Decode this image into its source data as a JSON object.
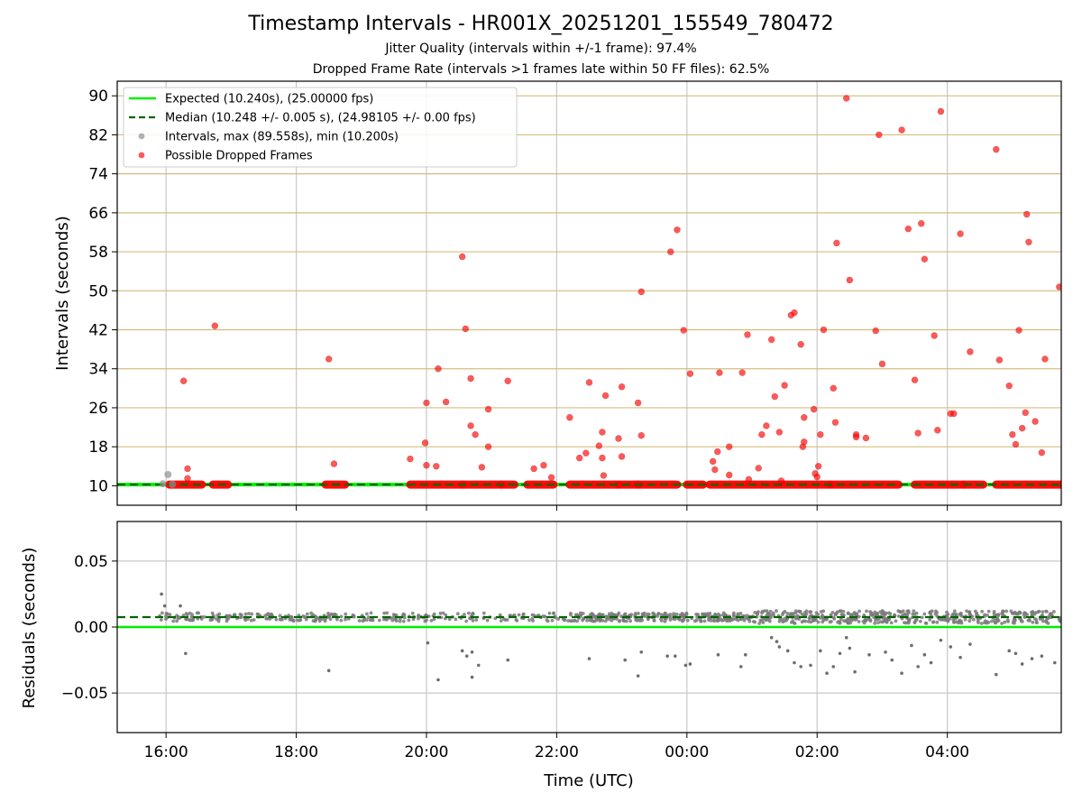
{
  "chart_data": [
    {
      "type": "scatter",
      "title": "Timestamp Intervals - HR001X_20251201_155549_780472",
      "subtitle_1": "Jitter Quality (intervals within +/-1 frame): 97.4%",
      "subtitle_2": "Dropped Frame Rate (intervals >1 frames late within 50 FF files): 62.5%",
      "xlabel": "",
      "ylabel": "Intervals (seconds)",
      "x_unit": "hours since 00:00 UTC (day 1); values above 24 wrap to next day",
      "xlim": [
        15.25,
        29.75
      ],
      "ylim": [
        6,
        93
      ],
      "yticks": [
        10,
        18,
        26,
        34,
        42,
        50,
        58,
        66,
        74,
        82,
        90
      ],
      "ytick_labels": [
        "10",
        "18",
        "26",
        "34",
        "42",
        "50",
        "58",
        "66",
        "74",
        "82",
        "90"
      ],
      "xticks": [
        16,
        18,
        20,
        22,
        24,
        26,
        28
      ],
      "grid": {
        "horizontal": true,
        "vertical": true
      },
      "legend": {
        "position": "top-left",
        "entries": [
          "Expected (10.240s), (25.00000 fps)",
          "Median (10.248 +/- 0.005 s), (24.98105 +/- 0.00 fps)",
          "Intervals, max (89.558s), min (10.200s)",
          "Possible Dropped Frames"
        ]
      },
      "colors": {
        "expected": "#00ee00",
        "median": "#006400",
        "intervals": "#909090",
        "dropped": "#ff0000",
        "gridline": "#d4bd7c",
        "vgrid": "#c8c8c8"
      },
      "expected_value": 10.24,
      "median_value": 10.248,
      "interval_points": [
        [
          15.95,
          10.4
        ],
        [
          16.03,
          12.3
        ],
        [
          16.1,
          10.3
        ]
      ],
      "dropped_segments": [
        [
          16.05,
          16.55
        ],
        [
          16.72,
          16.95
        ],
        [
          18.45,
          18.75
        ],
        [
          19.75,
          20.55
        ],
        [
          20.55,
          21.15
        ],
        [
          21.15,
          21.35
        ],
        [
          21.55,
          21.95
        ],
        [
          22.2,
          22.95
        ],
        [
          22.95,
          23.25
        ],
        [
          23.25,
          23.85
        ],
        [
          24.0,
          24.25
        ],
        [
          24.35,
          26.2
        ],
        [
          26.2,
          27.25
        ],
        [
          27.5,
          28.25
        ],
        [
          28.25,
          28.55
        ],
        [
          28.75,
          29.75
        ]
      ],
      "dropped_points": [
        [
          16.27,
          31.5
        ],
        [
          16.33,
          13.5
        ],
        [
          16.33,
          11.5
        ],
        [
          16.75,
          42.8
        ],
        [
          18.5,
          36.0
        ],
        [
          18.58,
          14.5
        ],
        [
          19.75,
          15.5
        ],
        [
          19.98,
          18.8
        ],
        [
          20.0,
          27.0
        ],
        [
          20.0,
          14.2
        ],
        [
          20.15,
          14.0
        ],
        [
          20.18,
          34.0
        ],
        [
          20.3,
          27.2
        ],
        [
          20.55,
          57.0
        ],
        [
          20.6,
          42.2
        ],
        [
          20.68,
          32.0
        ],
        [
          20.68,
          22.3
        ],
        [
          20.75,
          20.5
        ],
        [
          20.85,
          13.8
        ],
        [
          20.95,
          25.7
        ],
        [
          20.95,
          18.0
        ],
        [
          21.25,
          31.5
        ],
        [
          21.65,
          13.5
        ],
        [
          21.8,
          14.2
        ],
        [
          21.92,
          11.7
        ],
        [
          22.2,
          24.0
        ],
        [
          22.35,
          15.7
        ],
        [
          22.45,
          16.7
        ],
        [
          22.5,
          31.2
        ],
        [
          22.65,
          18.2
        ],
        [
          22.7,
          21.0
        ],
        [
          22.7,
          15.7
        ],
        [
          22.72,
          12.1
        ],
        [
          22.75,
          28.5
        ],
        [
          22.95,
          19.7
        ],
        [
          23.0,
          30.3
        ],
        [
          23.0,
          16.0
        ],
        [
          23.25,
          27.0
        ],
        [
          23.3,
          20.3
        ],
        [
          23.3,
          49.8
        ],
        [
          23.75,
          58.0
        ],
        [
          23.85,
          62.5
        ],
        [
          23.95,
          41.9
        ],
        [
          24.05,
          33.0
        ],
        [
          24.4,
          15.0
        ],
        [
          24.43,
          13.3
        ],
        [
          24.47,
          17.0
        ],
        [
          24.5,
          33.2
        ],
        [
          24.65,
          18.0
        ],
        [
          24.65,
          12.2
        ],
        [
          24.85,
          33.2
        ],
        [
          24.93,
          41.0
        ],
        [
          24.95,
          11.3
        ],
        [
          25.1,
          13.6
        ],
        [
          25.15,
          20.5
        ],
        [
          25.22,
          22.3
        ],
        [
          25.3,
          40.0
        ],
        [
          25.35,
          28.3
        ],
        [
          25.42,
          21.0
        ],
        [
          25.45,
          11.0
        ],
        [
          25.5,
          30.6
        ],
        [
          25.6,
          45.0
        ],
        [
          25.65,
          45.5
        ],
        [
          25.75,
          39.0
        ],
        [
          25.78,
          18.0
        ],
        [
          25.8,
          19.0
        ],
        [
          25.8,
          24.0
        ],
        [
          25.95,
          25.7
        ],
        [
          25.97,
          12.5
        ],
        [
          26.0,
          11.8
        ],
        [
          26.02,
          14.0
        ],
        [
          26.05,
          20.5
        ],
        [
          26.1,
          42.0
        ],
        [
          26.25,
          30.0
        ],
        [
          26.28,
          23.0
        ],
        [
          26.3,
          59.8
        ],
        [
          26.45,
          89.5
        ],
        [
          26.5,
          52.2
        ],
        [
          26.6,
          20.5
        ],
        [
          26.6,
          20.0
        ],
        [
          26.75,
          19.8
        ],
        [
          26.9,
          41.8
        ],
        [
          26.95,
          82.0
        ],
        [
          27.0,
          35.0
        ],
        [
          27.3,
          83.0
        ],
        [
          27.4,
          62.7
        ],
        [
          27.5,
          31.7
        ],
        [
          27.55,
          20.8
        ],
        [
          27.6,
          63.8
        ],
        [
          27.65,
          56.5
        ],
        [
          27.8,
          40.8
        ],
        [
          27.85,
          21.4
        ],
        [
          27.9,
          86.8
        ],
        [
          28.05,
          24.8
        ],
        [
          28.1,
          24.8
        ],
        [
          28.2,
          61.7
        ],
        [
          28.35,
          37.5
        ],
        [
          28.75,
          79.0
        ],
        [
          28.8,
          35.8
        ],
        [
          28.95,
          30.5
        ],
        [
          29.0,
          20.5
        ],
        [
          29.05,
          18.5
        ],
        [
          29.1,
          41.9
        ],
        [
          29.15,
          21.8
        ],
        [
          29.2,
          25.0
        ],
        [
          29.22,
          65.7
        ],
        [
          29.25,
          60.0
        ],
        [
          29.35,
          23.2
        ],
        [
          29.45,
          16.8
        ],
        [
          29.5,
          36.0
        ],
        [
          29.72,
          50.8
        ]
      ]
    },
    {
      "type": "scatter",
      "xlabel": "Time (UTC)",
      "ylabel": "Residuals (seconds)",
      "xlim": [
        15.25,
        29.75
      ],
      "ylim": [
        -0.08,
        0.08
      ],
      "yticks": [
        -0.05,
        0.0,
        0.05
      ],
      "ytick_labels": [
        "−0.05",
        "0.00",
        "0.05"
      ],
      "xticks": [
        16,
        18,
        20,
        22,
        24,
        26,
        28
      ],
      "xtick_labels": [
        "16:00",
        "18:00",
        "20:00",
        "22:00",
        "00:00",
        "02:00",
        "04:00"
      ],
      "grid": {
        "horizontal": true,
        "vertical": true
      },
      "zero_line": 0.0,
      "median_line": 0.0075,
      "residual_band": {
        "x_start": 15.9,
        "x_end": 29.75,
        "center": 0.0075,
        "spread": 0.004,
        "note": "dense band of residual points around median"
      },
      "outliers": [
        [
          15.93,
          0.025
        ],
        [
          15.98,
          0.016
        ],
        [
          16.3,
          -0.02
        ],
        [
          16.22,
          0.016
        ],
        [
          18.5,
          -0.033
        ],
        [
          20.02,
          -0.012
        ],
        [
          20.18,
          -0.04
        ],
        [
          20.55,
          -0.018
        ],
        [
          20.62,
          -0.022
        ],
        [
          20.7,
          -0.019
        ],
        [
          20.7,
          -0.038
        ],
        [
          20.8,
          -0.029
        ],
        [
          21.25,
          -0.025
        ],
        [
          22.5,
          -0.024
        ],
        [
          23.05,
          -0.025
        ],
        [
          23.25,
          -0.037
        ],
        [
          23.3,
          -0.019
        ],
        [
          23.7,
          -0.022
        ],
        [
          23.82,
          -0.022
        ],
        [
          23.98,
          -0.029
        ],
        [
          24.05,
          -0.028
        ],
        [
          24.48,
          -0.021
        ],
        [
          24.83,
          -0.03
        ],
        [
          24.9,
          -0.021
        ],
        [
          25.3,
          -0.008
        ],
        [
          25.38,
          -0.011
        ],
        [
          25.42,
          -0.015
        ],
        [
          25.55,
          -0.018
        ],
        [
          25.65,
          -0.027
        ],
        [
          25.75,
          -0.03
        ],
        [
          25.9,
          -0.029
        ],
        [
          26.05,
          -0.018
        ],
        [
          26.15,
          -0.035
        ],
        [
          26.25,
          -0.03
        ],
        [
          26.35,
          -0.02
        ],
        [
          26.45,
          -0.008
        ],
        [
          26.5,
          -0.016
        ],
        [
          26.58,
          -0.034
        ],
        [
          26.8,
          -0.021
        ],
        [
          27.05,
          -0.019
        ],
        [
          27.15,
          -0.025
        ],
        [
          27.3,
          -0.035
        ],
        [
          27.45,
          -0.014
        ],
        [
          27.55,
          -0.03
        ],
        [
          27.65,
          -0.021
        ],
        [
          27.75,
          -0.027
        ],
        [
          27.9,
          -0.01
        ],
        [
          28.05,
          -0.015
        ],
        [
          28.2,
          -0.023
        ],
        [
          28.35,
          -0.013
        ],
        [
          28.75,
          -0.036
        ],
        [
          28.95,
          -0.018
        ],
        [
          29.05,
          -0.02
        ],
        [
          29.15,
          -0.028
        ],
        [
          29.3,
          -0.024
        ],
        [
          29.45,
          -0.022
        ],
        [
          29.65,
          -0.027
        ]
      ]
    }
  ]
}
